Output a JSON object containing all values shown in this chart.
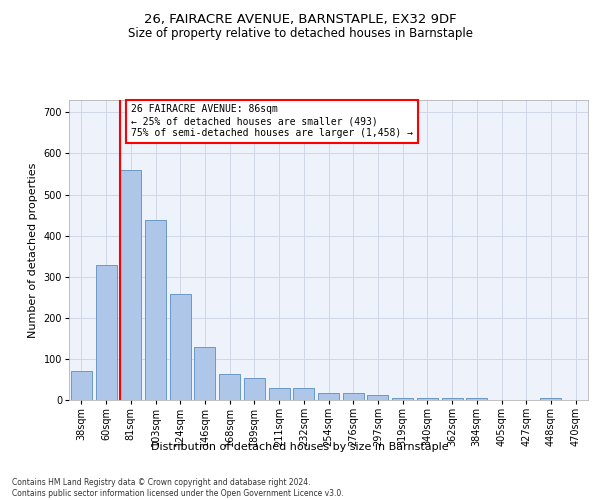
{
  "title": "26, FAIRACRE AVENUE, BARNSTAPLE, EX32 9DF",
  "subtitle": "Size of property relative to detached houses in Barnstaple",
  "xlabel": "Distribution of detached houses by size in Barnstaple",
  "ylabel": "Number of detached properties",
  "categories": [
    "38sqm",
    "60sqm",
    "81sqm",
    "103sqm",
    "124sqm",
    "146sqm",
    "168sqm",
    "189sqm",
    "211sqm",
    "232sqm",
    "254sqm",
    "276sqm",
    "297sqm",
    "319sqm",
    "340sqm",
    "362sqm",
    "384sqm",
    "405sqm",
    "427sqm",
    "448sqm",
    "470sqm"
  ],
  "values": [
    70,
    328,
    560,
    437,
    258,
    128,
    63,
    53,
    28,
    28,
    16,
    16,
    12,
    5,
    5,
    5,
    5,
    0,
    0,
    5,
    0
  ],
  "bar_color": "#aec6e8",
  "bar_edge_color": "#5a8fc4",
  "vline_color": "red",
  "annotation_text": "26 FAIRACRE AVENUE: 86sqm\n← 25% of detached houses are smaller (493)\n75% of semi-detached houses are larger (1,458) →",
  "annotation_box_color": "white",
  "annotation_box_edge_color": "red",
  "ylim": [
    0,
    730
  ],
  "yticks": [
    0,
    100,
    200,
    300,
    400,
    500,
    600,
    700
  ],
  "grid_color": "#d0d8e8",
  "bg_color": "#eef2fa",
  "footer": "Contains HM Land Registry data © Crown copyright and database right 2024.\nContains public sector information licensed under the Open Government Licence v3.0.",
  "title_fontsize": 9.5,
  "subtitle_fontsize": 8.5,
  "tick_fontsize": 7,
  "ylabel_fontsize": 8,
  "xlabel_fontsize": 8,
  "footer_fontsize": 5.5
}
